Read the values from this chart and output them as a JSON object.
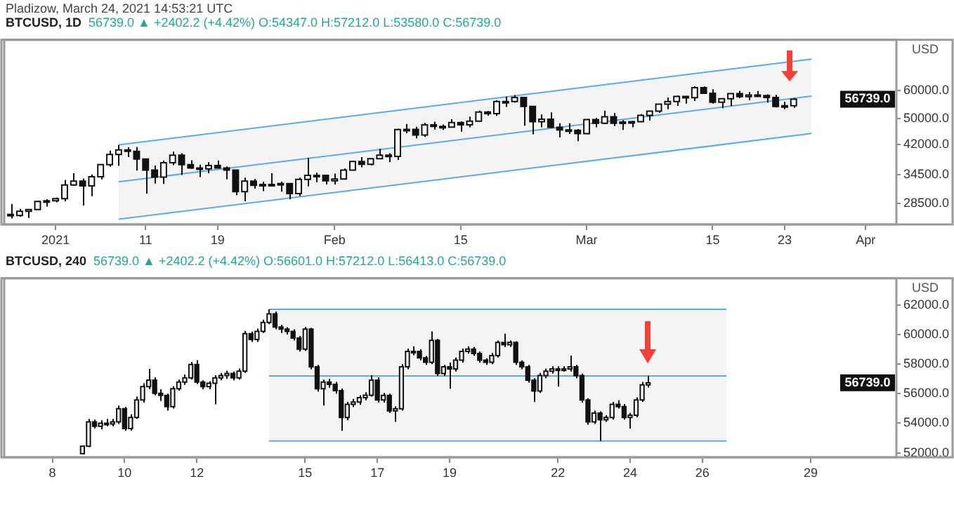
{
  "chart_data": [
    {
      "type": "candlestick",
      "title": "BTCUSD, 1D",
      "subtitle": "56739.0 ▲ +2402.2 (+4.42%) O:54347.0 H:57212.0 L:53580.0 C:56739.0",
      "ylabel": "USD",
      "log": true,
      "annotations": [
        "Pladizow, March 24, 2021 14:53:21 UTC",
        {
          "text": "56739.0",
          "y": 56739
        }
      ],
      "xlim": [
        "2020-12-26T07:00",
        "2021-04-04T10:00"
      ],
      "ylim": [
        24800,
        84000
      ],
      "xticks": [
        {
          "value": "2021-01-01",
          "label": "2021"
        },
        {
          "value": "2021-01-11",
          "label": "11"
        },
        {
          "value": "2021-01-19",
          "label": "19"
        },
        {
          "value": "2021-02-01",
          "label": "Feb"
        },
        {
          "value": "2021-02-15",
          "label": "15"
        },
        {
          "value": "2021-03-01",
          "label": "Mar"
        },
        {
          "value": "2021-03-15",
          "label": "15"
        },
        {
          "value": "2021-03-23",
          "label": "23"
        },
        {
          "value": "2021-04-01",
          "label": "Apr"
        }
      ],
      "yticks": [
        {
          "value": 28500,
          "label": "28500.0"
        },
        {
          "value": 34500,
          "label": "34500.0"
        },
        {
          "value": 42000,
          "label": "42000.0"
        },
        {
          "value": 50000,
          "label": "50000.0"
        },
        {
          "value": 60000,
          "label": "60000.0"
        }
      ],
      "x": [
        "2020-12-27",
        "2020-12-28",
        "2020-12-29",
        "2020-12-30",
        "2020-12-31",
        "2021-01-01",
        "2021-01-02",
        "2021-01-03",
        "2021-01-04",
        "2021-01-05",
        "2021-01-06",
        "2021-01-07",
        "2021-01-08",
        "2021-01-09",
        "2021-01-10",
        "2021-01-11",
        "2021-01-12",
        "2021-01-13",
        "2021-01-14",
        "2021-01-15",
        "2021-01-16",
        "2021-01-17",
        "2021-01-18",
        "2021-01-19",
        "2021-01-20",
        "2021-01-21",
        "2021-01-22",
        "2021-01-23",
        "2021-01-24",
        "2021-01-25",
        "2021-01-26",
        "2021-01-27",
        "2021-01-28",
        "2021-01-29",
        "2021-01-30",
        "2021-01-31",
        "2021-02-01",
        "2021-02-02",
        "2021-02-03",
        "2021-02-04",
        "2021-02-05",
        "2021-02-06",
        "2021-02-07",
        "2021-02-08",
        "2021-02-09",
        "2021-02-10",
        "2021-02-11",
        "2021-02-12",
        "2021-02-13",
        "2021-02-14",
        "2021-02-15",
        "2021-02-16",
        "2021-02-17",
        "2021-02-18",
        "2021-02-19",
        "2021-02-20",
        "2021-02-21",
        "2021-02-22",
        "2021-02-23",
        "2021-02-24",
        "2021-02-25",
        "2021-02-26",
        "2021-02-27",
        "2021-02-28",
        "2021-03-01",
        "2021-03-02",
        "2021-03-03",
        "2021-03-04",
        "2021-03-05",
        "2021-03-06",
        "2021-03-07",
        "2021-03-08",
        "2021-03-09",
        "2021-03-10",
        "2021-03-11",
        "2021-03-12",
        "2021-03-13",
        "2021-03-14",
        "2021-03-15",
        "2021-03-16",
        "2021-03-17",
        "2021-03-18",
        "2021-03-19",
        "2021-03-20",
        "2021-03-21",
        "2021-03-22",
        "2021-03-23",
        "2021-03-24"
      ],
      "ohlc": [
        [
          26500,
          28400,
          25800,
          26300
        ],
        [
          26300,
          27500,
          26100,
          27050
        ],
        [
          27050,
          27400,
          25900,
          27370
        ],
        [
          27370,
          28990,
          27320,
          28880
        ],
        [
          28880,
          29300,
          27900,
          28990
        ],
        [
          28990,
          29600,
          28700,
          29400
        ],
        [
          29400,
          33300,
          28900,
          32200
        ],
        [
          32200,
          34800,
          32000,
          33000
        ],
        [
          33000,
          33600,
          28100,
          32000
        ],
        [
          32000,
          34500,
          29900,
          34000
        ],
        [
          34000,
          36900,
          33400,
          36800
        ],
        [
          36800,
          40400,
          36300,
          39400
        ],
        [
          39400,
          41900,
          36500,
          40600
        ],
        [
          40600,
          41300,
          38700,
          40200
        ],
        [
          40200,
          41400,
          35400,
          38200
        ],
        [
          38200,
          38300,
          30400,
          35500
        ],
        [
          35500,
          36600,
          32500,
          33900
        ],
        [
          33900,
          37800,
          32400,
          37300
        ],
        [
          37300,
          40100,
          36700,
          39200
        ],
        [
          39200,
          39700,
          34400,
          36800
        ],
        [
          36800,
          37900,
          35800,
          36000
        ],
        [
          36000,
          36800,
          33900,
          35800
        ],
        [
          35800,
          37400,
          34800,
          36600
        ],
        [
          36600,
          37800,
          35900,
          36000
        ],
        [
          36000,
          36400,
          33400,
          35500
        ],
        [
          35500,
          35600,
          30100,
          30800
        ],
        [
          30800,
          33800,
          28900,
          33000
        ],
        [
          33000,
          33500,
          31400,
          32100
        ],
        [
          32100,
          32900,
          30900,
          32300
        ],
        [
          32300,
          34800,
          31900,
          32300
        ],
        [
          32300,
          32900,
          30800,
          32500
        ],
        [
          32500,
          32600,
          29300,
          30400
        ],
        [
          30400,
          33800,
          29900,
          33400
        ],
        [
          33400,
          38500,
          31900,
          34300
        ],
        [
          34300,
          34900,
          32800,
          34300
        ],
        [
          34300,
          34300,
          32300,
          33100
        ],
        [
          33100,
          34700,
          32300,
          33500
        ],
        [
          33500,
          35900,
          33400,
          35500
        ],
        [
          35500,
          37700,
          35400,
          37600
        ],
        [
          37600,
          38700,
          36200,
          36900
        ],
        [
          36900,
          38300,
          36600,
          38300
        ],
        [
          38300,
          40900,
          38200,
          39200
        ],
        [
          39200,
          39700,
          37400,
          38900
        ],
        [
          38900,
          46700,
          38000,
          46400
        ],
        [
          46400,
          48200,
          45300,
          46500
        ],
        [
          46500,
          47300,
          43800,
          44800
        ],
        [
          44800,
          48500,
          44200,
          47900
        ],
        [
          47900,
          48900,
          46400,
          47400
        ],
        [
          47400,
          48000,
          46300,
          47200
        ],
        [
          47200,
          49700,
          47100,
          48600
        ],
        [
          48600,
          49000,
          45800,
          47900
        ],
        [
          47900,
          50600,
          47100,
          49100
        ],
        [
          49100,
          52600,
          48900,
          52100
        ],
        [
          52100,
          52500,
          50900,
          51600
        ],
        [
          51600,
          56300,
          50800,
          55900
        ],
        [
          55900,
          57700,
          53900,
          55900
        ],
        [
          55900,
          58300,
          55500,
          57400
        ],
        [
          57400,
          57500,
          47600,
          54100
        ],
        [
          54100,
          54200,
          45000,
          48900
        ],
        [
          48900,
          51300,
          47100,
          49700
        ],
        [
          49700,
          52000,
          46900,
          47100
        ],
        [
          47100,
          48400,
          44100,
          46300
        ],
        [
          46300,
          48400,
          45100,
          46200
        ],
        [
          46200,
          46600,
          43000,
          45200
        ],
        [
          45200,
          49800,
          45000,
          49600
        ],
        [
          49600,
          50100,
          47100,
          48400
        ],
        [
          48400,
          52600,
          48100,
          50500
        ],
        [
          50500,
          51800,
          47500,
          48400
        ],
        [
          48400,
          49400,
          46300,
          48800
        ],
        [
          48800,
          49200,
          47100,
          48900
        ],
        [
          48900,
          51400,
          48900,
          51000
        ],
        [
          51000,
          52400,
          49300,
          52400
        ],
        [
          52400,
          54900,
          51900,
          54900
        ],
        [
          54900,
          57400,
          53100,
          55900
        ],
        [
          55900,
          58100,
          54300,
          57800
        ],
        [
          57800,
          58000,
          55100,
          57300
        ],
        [
          57300,
          61800,
          56100,
          61200
        ],
        [
          61200,
          61700,
          59000,
          59000
        ],
        [
          59000,
          60600,
          55100,
          55600
        ],
        [
          55600,
          56900,
          53500,
          56900
        ],
        [
          56900,
          59000,
          54200,
          58900
        ],
        [
          58900,
          60000,
          57100,
          57700
        ],
        [
          57700,
          59500,
          56300,
          58300
        ],
        [
          58300,
          59900,
          57900,
          58100
        ],
        [
          58100,
          58600,
          55500,
          57400
        ],
        [
          57400,
          58400,
          53700,
          54100
        ],
        [
          54100,
          55800,
          53100,
          54347
        ],
        [
          54347,
          57212,
          53580,
          56739
        ]
      ],
      "series": [
        {
          "type": "line",
          "color": "#5aaaf0",
          "x": [
            "2021-01-08",
            "2021-03-26"
          ],
          "values": [
            32880,
            57900
          ],
          "lower": [
            25670,
            45230
          ],
          "upper": [
            41970,
            73950
          ]
        },
        {
          "type": "line",
          "color": "#5aaaf0",
          "x": [
            "2021-01-08",
            "2021-03-26"
          ],
          "values": [
            41970,
            73950
          ]
        },
        {
          "type": "line",
          "color": "#5aaaf0",
          "x": [
            "2021-01-08",
            "2021-03-26"
          ],
          "values": [
            25670,
            45230
          ]
        }
      ]
    },
    {
      "type": "candlestick",
      "title": "BTCUSD, 240",
      "subtitle": "56739.0 ▲ +2402.2 (+4.42%) O:56601.0 H:57212.0 L:56413.0 C:56739.0",
      "ylabel": "USD",
      "annotations": [
        {
          "text": "56739.0",
          "y": 56739
        }
      ],
      "xlim": [
        "2021-03-06T16:00",
        "2021-03-31T09:00"
      ],
      "ylim": [
        51700,
        63800
      ],
      "xticks": [
        {
          "value": "2021-03-08T00:00",
          "label": "8"
        },
        {
          "value": "2021-03-10T00:00",
          "label": "10"
        },
        {
          "value": "2021-03-12T00:00",
          "label": "12"
        },
        {
          "value": "2021-03-15T00:00",
          "label": "15"
        },
        {
          "value": "2021-03-17T00:00",
          "label": "17"
        },
        {
          "value": "2021-03-19T00:00",
          "label": "19"
        },
        {
          "value": "2021-03-22T00:00",
          "label": "22"
        },
        {
          "value": "2021-03-24T00:00",
          "label": "24"
        },
        {
          "value": "2021-03-26T00:00",
          "label": "26"
        },
        {
          "value": "2021-03-29T00:00",
          "label": "29"
        }
      ],
      "yticks": [
        {
          "value": 52000,
          "label": "52000.0"
        },
        {
          "value": 54000,
          "label": "54000.0"
        },
        {
          "value": 56000,
          "label": "56000.0"
        },
        {
          "value": 58000,
          "label": "58000.0"
        },
        {
          "value": 60000,
          "label": "60000.0"
        },
        {
          "value": 62000,
          "label": "62000.0"
        }
      ],
      "x": [
        "2021-03-08T20:00",
        "2021-03-09T00:00",
        "2021-03-09T04:00",
        "2021-03-09T08:00",
        "2021-03-09T12:00",
        "2021-03-09T16:00",
        "2021-03-09T20:00",
        "2021-03-10T00:00",
        "2021-03-10T04:00",
        "2021-03-10T08:00",
        "2021-03-10T12:00",
        "2021-03-10T16:00",
        "2021-03-10T20:00",
        "2021-03-11T00:00",
        "2021-03-11T04:00",
        "2021-03-11T08:00",
        "2021-03-11T12:00",
        "2021-03-11T16:00",
        "2021-03-11T20:00",
        "2021-03-12T00:00",
        "2021-03-12T04:00",
        "2021-03-12T08:00",
        "2021-03-12T12:00",
        "2021-03-12T16:00",
        "2021-03-12T20:00",
        "2021-03-13T00:00",
        "2021-03-13T04:00",
        "2021-03-13T08:00",
        "2021-03-13T12:00",
        "2021-03-13T16:00",
        "2021-03-13T20:00",
        "2021-03-14T00:00",
        "2021-03-14T04:00",
        "2021-03-14T08:00",
        "2021-03-14T12:00",
        "2021-03-14T16:00",
        "2021-03-14T20:00",
        "2021-03-15T00:00",
        "2021-03-15T04:00",
        "2021-03-15T08:00",
        "2021-03-15T12:00",
        "2021-03-15T16:00",
        "2021-03-15T20:00",
        "2021-03-16T00:00",
        "2021-03-16T04:00",
        "2021-03-16T08:00",
        "2021-03-16T12:00",
        "2021-03-16T16:00",
        "2021-03-16T20:00",
        "2021-03-17T00:00",
        "2021-03-17T04:00",
        "2021-03-17T08:00",
        "2021-03-17T12:00",
        "2021-03-17T16:00",
        "2021-03-17T20:00",
        "2021-03-18T00:00",
        "2021-03-18T04:00",
        "2021-03-18T08:00",
        "2021-03-18T12:00",
        "2021-03-18T16:00",
        "2021-03-18T20:00",
        "2021-03-19T00:00",
        "2021-03-19T04:00",
        "2021-03-19T08:00",
        "2021-03-19T12:00",
        "2021-03-19T16:00",
        "2021-03-19T20:00",
        "2021-03-20T00:00",
        "2021-03-20T04:00",
        "2021-03-20T08:00",
        "2021-03-20T12:00",
        "2021-03-20T16:00",
        "2021-03-20T20:00",
        "2021-03-21T00:00",
        "2021-03-21T04:00",
        "2021-03-21T08:00",
        "2021-03-21T12:00",
        "2021-03-21T16:00",
        "2021-03-21T20:00",
        "2021-03-22T00:00",
        "2021-03-22T04:00",
        "2021-03-22T08:00",
        "2021-03-22T12:00",
        "2021-03-22T16:00",
        "2021-03-22T20:00",
        "2021-03-23T00:00",
        "2021-03-23T04:00",
        "2021-03-23T08:00",
        "2021-03-23T12:00",
        "2021-03-23T16:00",
        "2021-03-23T20:00",
        "2021-03-24T00:00",
        "2021-03-24T04:00",
        "2021-03-24T08:00",
        "2021-03-24T12:00"
      ],
      "ohlc": [
        [
          51950,
          52500,
          51900,
          52450
        ],
        [
          52450,
          54300,
          52400,
          54090
        ],
        [
          54090,
          54250,
          53650,
          53800
        ],
        [
          53800,
          54200,
          53600,
          54000
        ],
        [
          54000,
          54300,
          53800,
          53950
        ],
        [
          53950,
          54300,
          53800,
          54100
        ],
        [
          54100,
          55200,
          53950,
          54980
        ],
        [
          54980,
          55100,
          53500,
          53640
        ],
        [
          53640,
          54600,
          53500,
          54390
        ],
        [
          54390,
          55800,
          54300,
          55580
        ],
        [
          55580,
          56700,
          55400,
          56480
        ],
        [
          56480,
          57670,
          56300,
          56920
        ],
        [
          56920,
          57100,
          55900,
          56030
        ],
        [
          56030,
          56300,
          55500,
          55880
        ],
        [
          55880,
          56000,
          54850,
          55130
        ],
        [
          55130,
          56500,
          55000,
          56330
        ],
        [
          56330,
          56950,
          56200,
          56780
        ],
        [
          56780,
          57300,
          56600,
          57070
        ],
        [
          57070,
          58150,
          56950,
          57970
        ],
        [
          57970,
          58270,
          56650,
          56780
        ],
        [
          56780,
          56900,
          56300,
          56480
        ],
        [
          56480,
          56850,
          56300,
          56700
        ],
        [
          56700,
          57250,
          55280,
          57070
        ],
        [
          57070,
          57400,
          56900,
          57220
        ],
        [
          57220,
          57550,
          57000,
          57370
        ],
        [
          57370,
          57500,
          56900,
          57070
        ],
        [
          57070,
          57700,
          56950,
          57520
        ],
        [
          57520,
          60250,
          57400,
          60060
        ],
        [
          60060,
          60200,
          59500,
          59670
        ],
        [
          59670,
          60400,
          59500,
          60210
        ],
        [
          60210,
          61000,
          60100,
          60810
        ],
        [
          60810,
          61700,
          60700,
          61400
        ],
        [
          61400,
          61550,
          60350,
          60510
        ],
        [
          60510,
          60650,
          60100,
          60360
        ],
        [
          60360,
          60500,
          60000,
          60210
        ],
        [
          60210,
          60350,
          59600,
          59760
        ],
        [
          59760,
          59900,
          58850,
          59010
        ],
        [
          59010,
          60510,
          58900,
          60360
        ],
        [
          60360,
          60450,
          57650,
          57820
        ],
        [
          57820,
          57950,
          56150,
          56330
        ],
        [
          56330,
          56950,
          55200,
          56780
        ],
        [
          56780,
          57000,
          56400,
          56630
        ],
        [
          56630,
          56800,
          56000,
          56200
        ],
        [
          56200,
          56350,
          53490,
          54390
        ],
        [
          54390,
          55450,
          54200,
          55280
        ],
        [
          55280,
          55650,
          55100,
          55430
        ],
        [
          55430,
          55900,
          55250,
          55730
        ],
        [
          55730,
          56100,
          55550,
          55900
        ],
        [
          55900,
          57250,
          55800,
          56920
        ],
        [
          56920,
          57100,
          55400,
          55580
        ],
        [
          55580,
          56050,
          55400,
          55880
        ],
        [
          55880,
          56000,
          54700,
          54840
        ],
        [
          54840,
          55150,
          54090,
          54980
        ],
        [
          54980,
          58000,
          54850,
          57820
        ],
        [
          57820,
          59050,
          57650,
          58860
        ],
        [
          58860,
          59200,
          58600,
          58860
        ],
        [
          58860,
          59000,
          58250,
          58420
        ],
        [
          58420,
          58550,
          57950,
          58120
        ],
        [
          58120,
          60210,
          58000,
          59610
        ],
        [
          59610,
          59700,
          57200,
          57370
        ],
        [
          57370,
          57950,
          57200,
          57820
        ],
        [
          57820,
          58100,
          56330,
          57670
        ],
        [
          57670,
          58450,
          57500,
          58270
        ],
        [
          58270,
          59050,
          58100,
          58860
        ],
        [
          58860,
          59200,
          58700,
          59010
        ],
        [
          59010,
          59150,
          58550,
          58720
        ],
        [
          58720,
          58850,
          58100,
          58270
        ],
        [
          58270,
          58400,
          57950,
          58120
        ],
        [
          58120,
          58750,
          58000,
          58570
        ],
        [
          58570,
          59600,
          58450,
          59460
        ],
        [
          59460,
          60060,
          59150,
          59310
        ],
        [
          59310,
          59600,
          59150,
          59460
        ],
        [
          59460,
          59550,
          57950,
          58120
        ],
        [
          58120,
          58250,
          57650,
          57820
        ],
        [
          57820,
          57950,
          56750,
          56920
        ],
        [
          56920,
          57050,
          55430,
          56180
        ],
        [
          56180,
          57400,
          56050,
          57220
        ],
        [
          57220,
          57700,
          57050,
          57520
        ],
        [
          57520,
          57850,
          57350,
          57670
        ],
        [
          57670,
          57850,
          56480,
          57670
        ],
        [
          57670,
          57850,
          57500,
          57670
        ],
        [
          57670,
          58570,
          57500,
          57820
        ],
        [
          57820,
          57950,
          57050,
          57220
        ],
        [
          57220,
          57350,
          55400,
          55580
        ],
        [
          55580,
          55700,
          53900,
          54090
        ],
        [
          54090,
          54850,
          53950,
          54690
        ],
        [
          54690,
          54800,
          52800,
          54240
        ],
        [
          54240,
          54550,
          54100,
          54390
        ],
        [
          54390,
          55450,
          54250,
          55280
        ],
        [
          55280,
          55550,
          55000,
          55130
        ],
        [
          55130,
          55300,
          54250,
          54390
        ],
        [
          54390,
          54700,
          53640,
          54540
        ],
        [
          54540,
          55750,
          54400,
          55580
        ],
        [
          55580,
          56800,
          55450,
          56601
        ],
        [
          56601,
          57212,
          56413,
          56739
        ]
      ],
      "series": [
        {
          "type": "line",
          "color": "#5aaaf0",
          "x": [
            "2021-03-14T00:00",
            "2021-03-26T16:00"
          ],
          "values": [
            57200,
            57200
          ],
          "lower": [
            52800,
            52800
          ],
          "upper": [
            61700,
            61700
          ]
        },
        {
          "type": "line",
          "color": "#5aaaf0",
          "x": [
            "2021-03-14T00:00",
            "2021-03-26T16:00"
          ],
          "values": [
            61700,
            61700
          ]
        },
        {
          "type": "line",
          "color": "#5aaaf0",
          "x": [
            "2021-03-14T00:00",
            "2021-03-26T16:00"
          ],
          "values": [
            52800,
            52800
          ]
        }
      ]
    }
  ]
}
